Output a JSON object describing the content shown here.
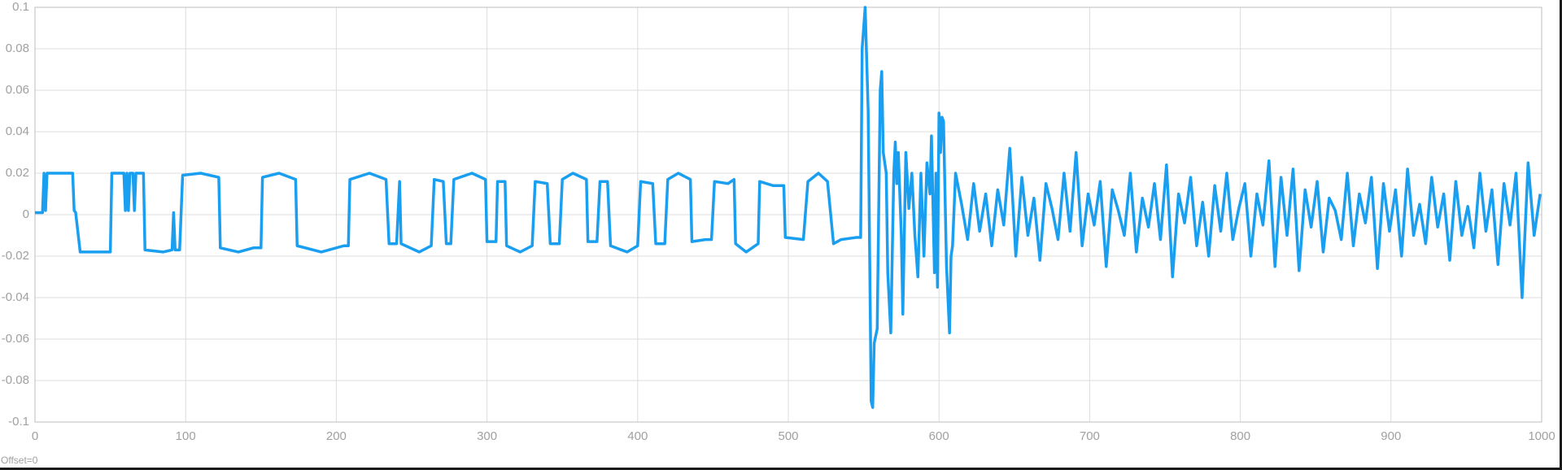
{
  "chart_data": {
    "type": "line",
    "offset_label": "Offset=0",
    "xlim": [
      0,
      1000
    ],
    "ylim": [
      -0.1,
      0.1
    ],
    "xticks": [
      0,
      100,
      200,
      300,
      400,
      500,
      600,
      700,
      800,
      900,
      1000
    ],
    "yticks": [
      -0.1,
      -0.08,
      -0.06,
      -0.04,
      -0.02,
      0,
      0.02,
      0.04,
      0.06,
      0.08,
      0.1
    ],
    "grid": true,
    "color": "#1a9ff0",
    "x": [
      0,
      5,
      6,
      7,
      8,
      25,
      26,
      27,
      30,
      50,
      51,
      59,
      60,
      61,
      62,
      63,
      65,
      66,
      67,
      72,
      73,
      85,
      91,
      92,
      93,
      96,
      98,
      110,
      122,
      123,
      135,
      145,
      150,
      151,
      162,
      173,
      174,
      190,
      205,
      208,
      209,
      222,
      233,
      235,
      240,
      242,
      243,
      255,
      263,
      265,
      271,
      273,
      276,
      278,
      290,
      299,
      300,
      306,
      307,
      312,
      313,
      322,
      330,
      332,
      340,
      342,
      348,
      350,
      357,
      366,
      367,
      373,
      375,
      380,
      382,
      393,
      400,
      402,
      410,
      412,
      418,
      420,
      427,
      435,
      436,
      445,
      449,
      451,
      460,
      464,
      465,
      472,
      480,
      481,
      490,
      497,
      498,
      510,
      513,
      520,
      526,
      530,
      535,
      545,
      548,
      549,
      551,
      553,
      555,
      556,
      557,
      559,
      561,
      562,
      563,
      565,
      566,
      568,
      570,
      571,
      572,
      573,
      575,
      576,
      578,
      580,
      582,
      584,
      586,
      588,
      590,
      592,
      594,
      595,
      597,
      598,
      599,
      600,
      601,
      602,
      603,
      605,
      607,
      608,
      609,
      611,
      615,
      619,
      623,
      627,
      631,
      635,
      639,
      643,
      647,
      651,
      655,
      659,
      663,
      667,
      671,
      675,
      679,
      683,
      687,
      691,
      695,
      699,
      703,
      707,
      711,
      715,
      719,
      723,
      727,
      731,
      735,
      739,
      743,
      747,
      751,
      755,
      759,
      763,
      767,
      771,
      775,
      779,
      783,
      787,
      791,
      795,
      799,
      803,
      807,
      811,
      815,
      819,
      823,
      827,
      831,
      835,
      839,
      843,
      847,
      851,
      855,
      859,
      863,
      867,
      871,
      875,
      879,
      883,
      887,
      891,
      895,
      899,
      903,
      907,
      911,
      915,
      919,
      923,
      927,
      931,
      935,
      939,
      943,
      947,
      951,
      955,
      959,
      963,
      967,
      971,
      975,
      979,
      983,
      987,
      991,
      995,
      999
    ],
    "values": [
      0.001,
      0.001,
      0.02,
      0.002,
      0.02,
      0.02,
      0.002,
      0.001,
      -0.018,
      -0.018,
      0.02,
      0.02,
      0.002,
      0.02,
      0.002,
      0.02,
      0.02,
      0.002,
      0.02,
      0.02,
      -0.017,
      -0.018,
      -0.017,
      0.001,
      -0.017,
      -0.017,
      0.019,
      0.02,
      0.018,
      -0.016,
      -0.018,
      -0.016,
      -0.016,
      0.018,
      0.02,
      0.017,
      -0.015,
      -0.018,
      -0.015,
      -0.015,
      0.017,
      0.02,
      0.017,
      -0.014,
      -0.014,
      0.016,
      -0.014,
      -0.018,
      -0.015,
      0.017,
      0.016,
      -0.014,
      -0.014,
      0.017,
      0.02,
      0.017,
      -0.013,
      -0.013,
      0.016,
      0.016,
      -0.015,
      -0.018,
      -0.015,
      0.016,
      0.015,
      -0.014,
      -0.014,
      0.017,
      0.02,
      0.017,
      -0.013,
      -0.013,
      0.016,
      0.016,
      -0.015,
      -0.018,
      -0.015,
      0.016,
      0.015,
      -0.014,
      -0.014,
      0.017,
      0.02,
      0.017,
      -0.013,
      -0.012,
      -0.012,
      0.016,
      0.015,
      0.017,
      -0.014,
      -0.018,
      -0.014,
      0.016,
      0.014,
      0.014,
      -0.011,
      -0.012,
      0.016,
      0.02,
      0.016,
      -0.014,
      -0.012,
      -0.011,
      -0.011,
      0.08,
      0.1,
      0.05,
      -0.09,
      -0.093,
      -0.062,
      -0.055,
      0.06,
      0.069,
      0.03,
      0.02,
      -0.028,
      -0.057,
      0.02,
      0.035,
      0.015,
      0.03,
      -0.01,
      -0.048,
      0.03,
      0.003,
      0.02,
      -0.01,
      -0.03,
      0.02,
      -0.02,
      0.025,
      0.01,
      0.038,
      -0.028,
      0.02,
      -0.035,
      0.049,
      0.03,
      0.047,
      0.045,
      -0.025,
      -0.057,
      -0.02,
      -0.015,
      0.02,
      0.005,
      -0.012,
      0.015,
      -0.008,
      0.01,
      -0.015,
      0.012,
      -0.005,
      0.032,
      -0.02,
      0.018,
      -0.01,
      0.008,
      -0.022,
      0.015,
      0.003,
      -0.012,
      0.02,
      -0.008,
      0.03,
      -0.015,
      0.01,
      -0.005,
      0.016,
      -0.025,
      0.012,
      0.002,
      -0.01,
      0.02,
      -0.018,
      0.008,
      -0.006,
      0.015,
      -0.012,
      0.024,
      -0.03,
      0.01,
      -0.004,
      0.018,
      -0.015,
      0.006,
      -0.02,
      0.014,
      -0.008,
      0.02,
      -0.012,
      0.003,
      0.015,
      -0.02,
      0.01,
      -0.005,
      0.026,
      -0.025,
      0.018,
      -0.01,
      0.022,
      -0.027,
      0.012,
      -0.006,
      0.016,
      -0.018,
      0.008,
      0.002,
      -0.012,
      0.02,
      -0.015,
      0.01,
      -0.004,
      0.018,
      -0.026,
      0.015,
      -0.008,
      0.012,
      -0.02,
      0.022,
      -0.01,
      0.005,
      -0.014,
      0.018,
      -0.006,
      0.01,
      -0.022,
      0.016,
      -0.01,
      0.004,
      -0.016,
      0.02,
      -0.008,
      0.012,
      -0.024,
      0.015,
      -0.005,
      0.02,
      -0.04,
      0.025,
      -0.01,
      0.01
    ]
  }
}
